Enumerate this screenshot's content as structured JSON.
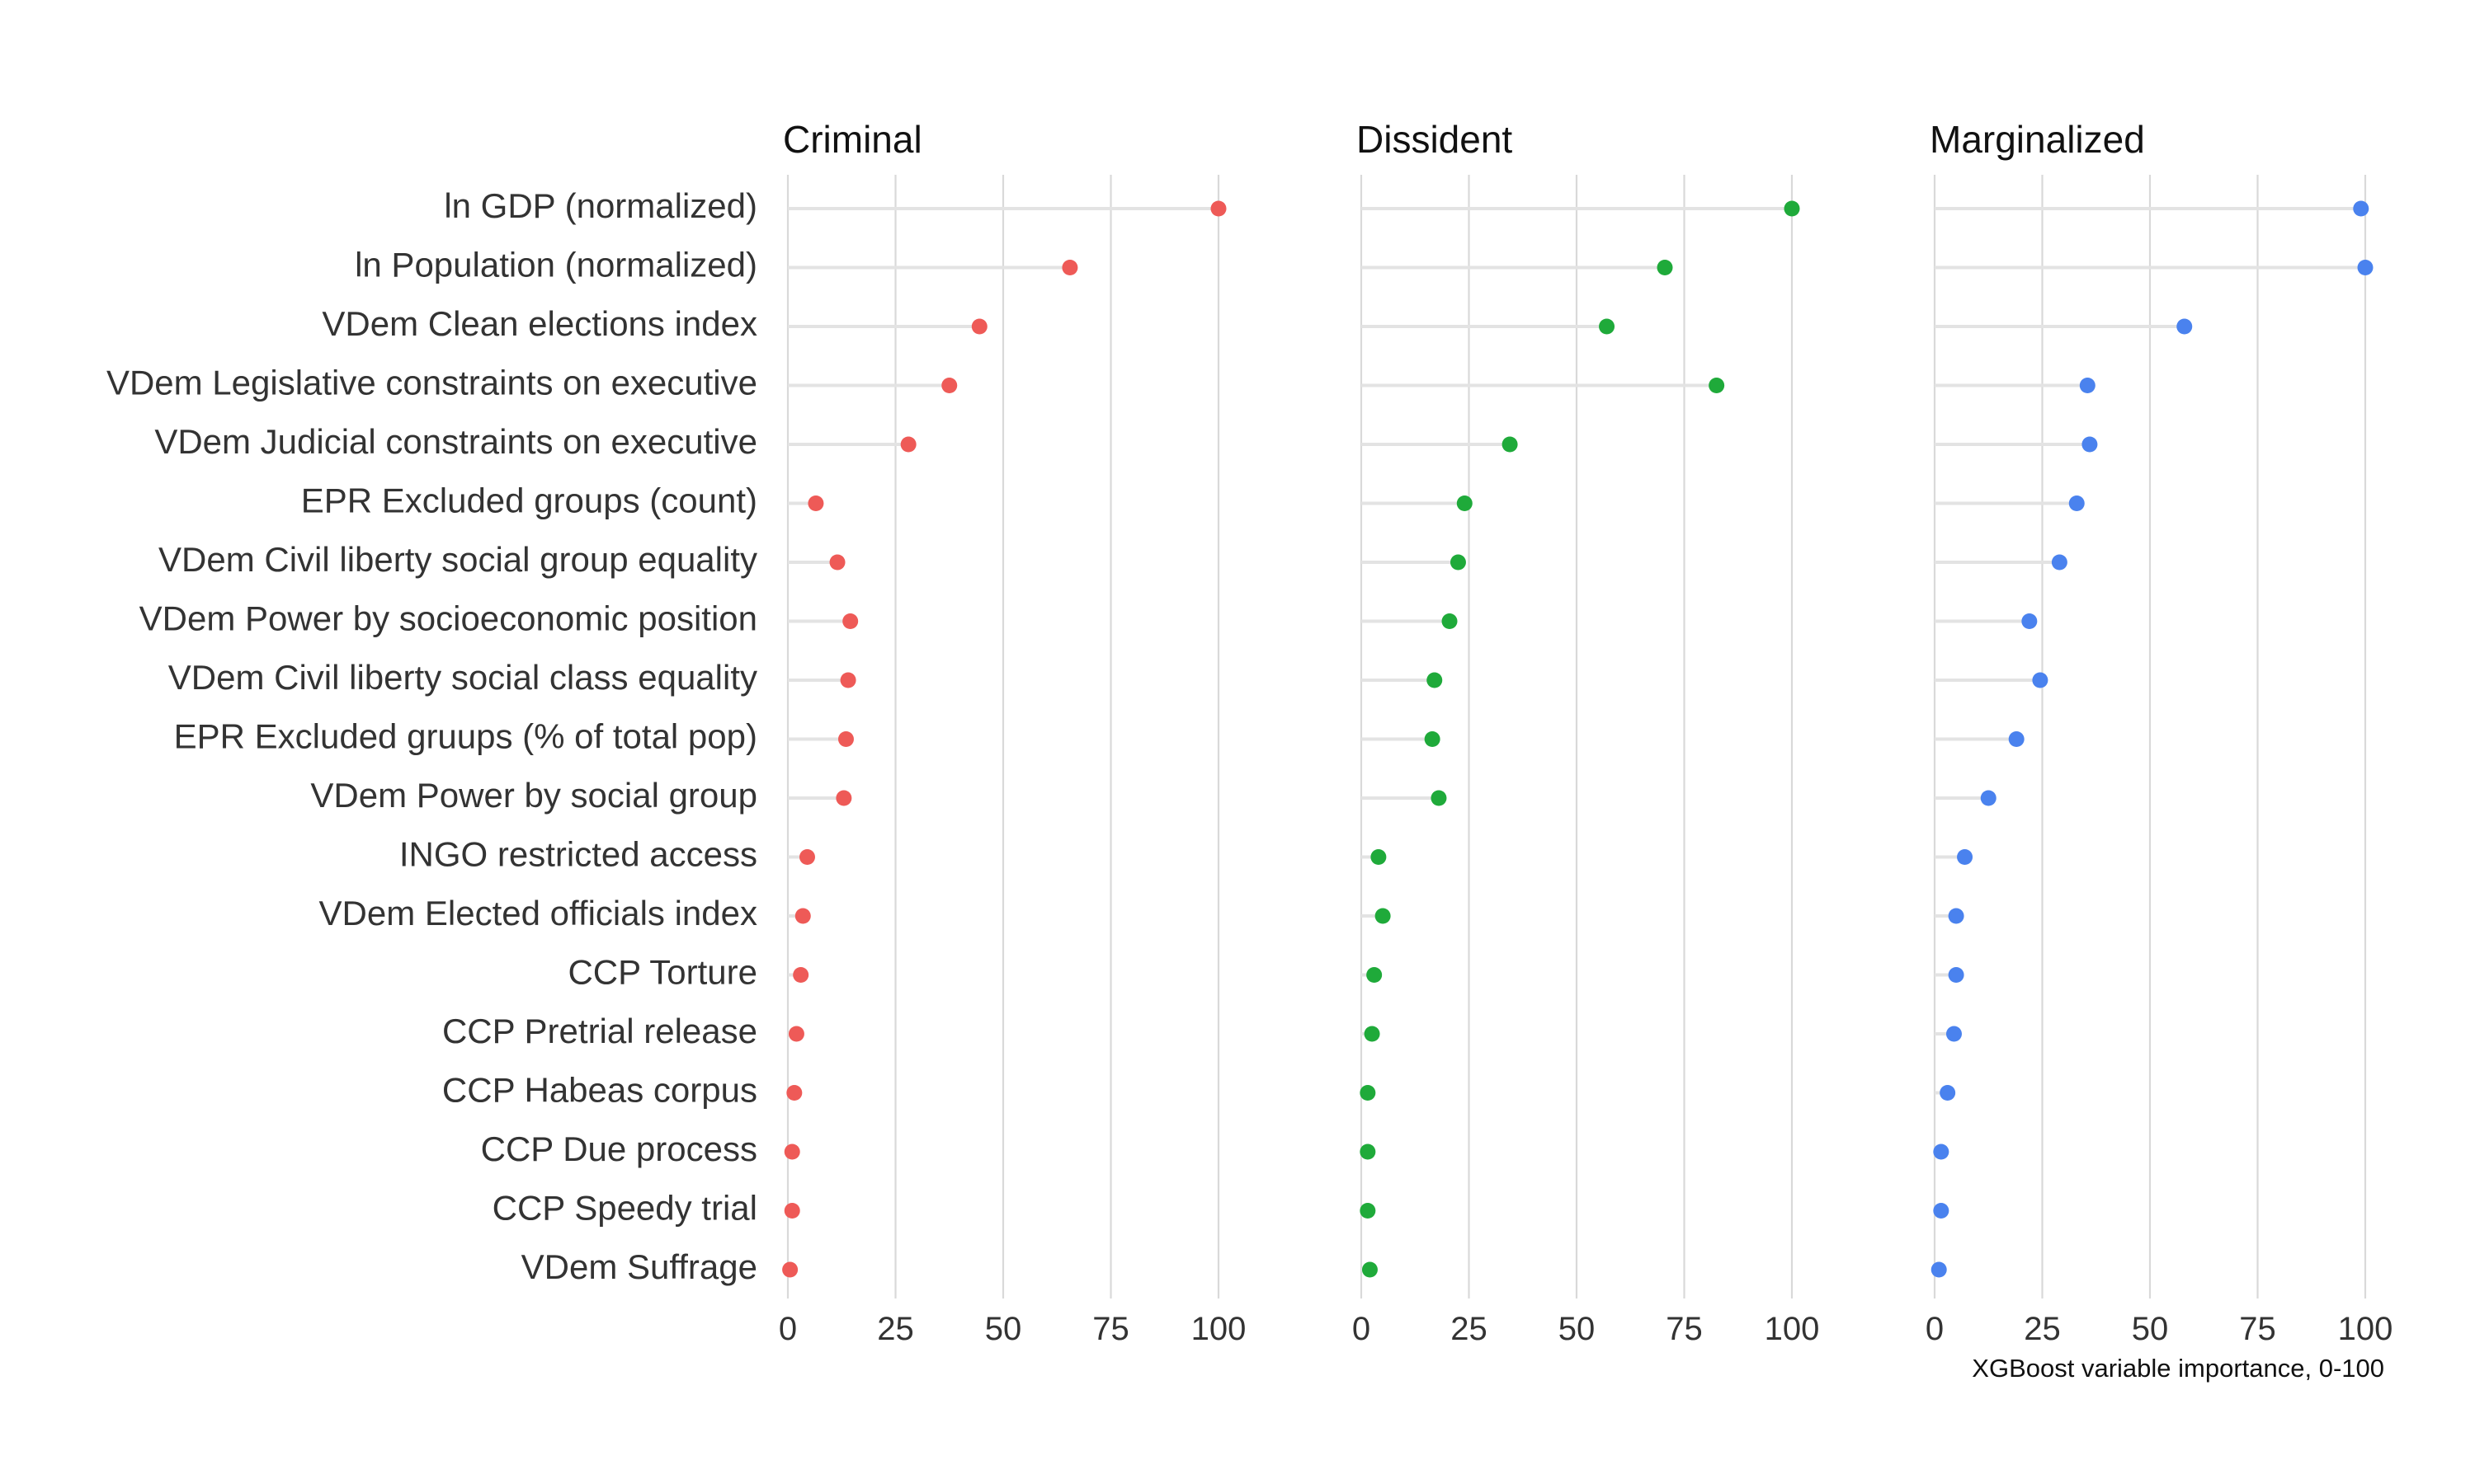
{
  "chart_data": {
    "type": "lollipop",
    "layout": "faceted-3-panels",
    "xlabel": "XGBoost variable importance, 0-100",
    "xlim": [
      0,
      100
    ],
    "xticks": [
      0,
      25,
      50,
      75,
      100
    ],
    "grid": "vertical",
    "legend": "none",
    "categories": [
      "ln GDP (normalized)",
      "ln Population (normalized)",
      "VDem Clean elections index",
      "VDem Legislative constraints on executive",
      "VDem Judicial constraints on executive",
      "EPR Excluded groups (count)",
      "VDem Civil liberty social group equality",
      "VDem Power by socioeconomic position",
      "VDem Civil liberty social class equality",
      "EPR Excluded gruups (% of total pop)",
      "VDem Power by social group",
      "INGO restricted access",
      "VDem Elected officials index",
      "CCP Torture",
      "CCP Pretrial release",
      "CCP Habeas corpus",
      "CCP Due process",
      "CCP Speedy trial",
      "VDem Suffrage"
    ],
    "panels": [
      {
        "title": "Criminal",
        "color": "#ee5a57",
        "values": [
          100,
          65.5,
          44.5,
          37.5,
          28,
          6.5,
          11.5,
          14.5,
          14,
          13.5,
          13,
          4.5,
          3.5,
          3,
          2,
          1.5,
          1,
          1,
          0.5
        ]
      },
      {
        "title": "Dissident",
        "color": "#1faa3a",
        "values": [
          100,
          70.5,
          57,
          82.5,
          34.5,
          24,
          22.5,
          20.5,
          17,
          16.5,
          18,
          4,
          5,
          3,
          2.5,
          1.5,
          1.5,
          1.5,
          2
        ]
      },
      {
        "title": "Marginalized",
        "color": "#4a82ee",
        "values": [
          99,
          100,
          58,
          35.5,
          36,
          33,
          29,
          22,
          24.5,
          19,
          12.5,
          7,
          5,
          5,
          4.5,
          3,
          1.5,
          1.5,
          1
        ]
      }
    ]
  }
}
